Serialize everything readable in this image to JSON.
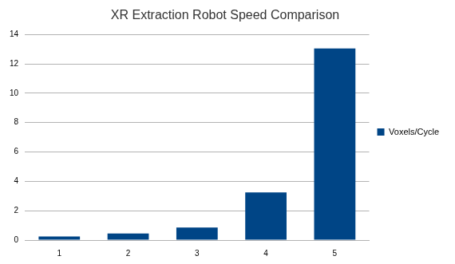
{
  "chart_data": {
    "type": "bar",
    "title": "XR Extraction Robot Speed Comparison",
    "categories": [
      "1",
      "2",
      "3",
      "4",
      "5"
    ],
    "series": [
      {
        "name": "Voxels/Cycle",
        "color": "#004586",
        "values": [
          0.25,
          0.45,
          0.85,
          3.25,
          13.05
        ]
      }
    ],
    "ylim": [
      0,
      14
    ],
    "yticks": [
      0,
      2,
      4,
      6,
      8,
      10,
      12,
      14
    ],
    "grid": true,
    "legend": "right"
  }
}
